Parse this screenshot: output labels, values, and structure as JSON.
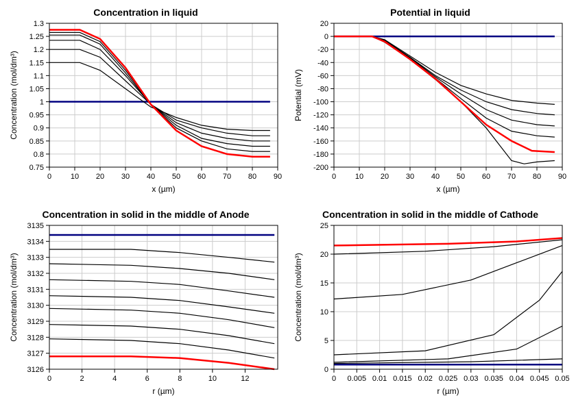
{
  "panels": [
    {
      "key": "tl",
      "title": "Concentration in liquid",
      "xlabel": "x (µm)",
      "ylabel": "Concentration (mol/dm³)",
      "xlim": [
        0,
        90
      ],
      "ylim": [
        0.75,
        1.3
      ],
      "xticks": [
        0,
        10,
        20,
        30,
        40,
        50,
        60,
        70,
        80,
        90
      ],
      "yticks": [
        0.75,
        0.8,
        0.85,
        0.9,
        0.95,
        1,
        1.05,
        1.1,
        1.15,
        1.2,
        1.25,
        1.3
      ],
      "series": [
        {
          "color": "blue",
          "data": [
            [
              0,
              1.0
            ],
            [
              87,
              1.0
            ]
          ]
        },
        {
          "color": "black",
          "data": [
            [
              0,
              1.15
            ],
            [
              12,
              1.15
            ],
            [
              20,
              1.12
            ],
            [
              30,
              1.05
            ],
            [
              40,
              0.98
            ],
            [
              50,
              0.94
            ],
            [
              60,
              0.91
            ],
            [
              70,
              0.895
            ],
            [
              80,
              0.89
            ],
            [
              87,
              0.89
            ]
          ]
        },
        {
          "color": "black",
          "data": [
            [
              0,
              1.2
            ],
            [
              12,
              1.2
            ],
            [
              20,
              1.17
            ],
            [
              30,
              1.08
            ],
            [
              40,
              0.99
            ],
            [
              50,
              0.93
            ],
            [
              60,
              0.9
            ],
            [
              70,
              0.88
            ],
            [
              80,
              0.87
            ],
            [
              87,
              0.87
            ]
          ]
        },
        {
          "color": "black",
          "data": [
            [
              0,
              1.235
            ],
            [
              12,
              1.235
            ],
            [
              20,
              1.2
            ],
            [
              30,
              1.1
            ],
            [
              40,
              0.99
            ],
            [
              50,
              0.92
            ],
            [
              60,
              0.88
            ],
            [
              70,
              0.86
            ],
            [
              80,
              0.85
            ],
            [
              87,
              0.85
            ]
          ]
        },
        {
          "color": "black",
          "data": [
            [
              0,
              1.255
            ],
            [
              12,
              1.255
            ],
            [
              20,
              1.22
            ],
            [
              30,
              1.11
            ],
            [
              40,
              0.99
            ],
            [
              50,
              0.91
            ],
            [
              60,
              0.86
            ],
            [
              70,
              0.84
            ],
            [
              80,
              0.83
            ],
            [
              87,
              0.83
            ]
          ]
        },
        {
          "color": "black",
          "data": [
            [
              0,
              1.265
            ],
            [
              12,
              1.265
            ],
            [
              20,
              1.23
            ],
            [
              30,
              1.12
            ],
            [
              40,
              0.99
            ],
            [
              50,
              0.9
            ],
            [
              60,
              0.85
            ],
            [
              70,
              0.82
            ],
            [
              80,
              0.81
            ],
            [
              87,
              0.81
            ]
          ]
        },
        {
          "color": "red",
          "data": [
            [
              0,
              1.275
            ],
            [
              12,
              1.275
            ],
            [
              20,
              1.24
            ],
            [
              30,
              1.13
            ],
            [
              40,
              0.99
            ],
            [
              50,
              0.89
            ],
            [
              60,
              0.83
            ],
            [
              70,
              0.8
            ],
            [
              80,
              0.79
            ],
            [
              87,
              0.79
            ]
          ]
        }
      ]
    },
    {
      "key": "tr",
      "title": "Potential in liquid",
      "xlabel": "x (µm)",
      "ylabel": "Potential (mV)",
      "xlim": [
        0,
        90
      ],
      "ylim": [
        -200,
        20
      ],
      "xticks": [
        0,
        10,
        20,
        30,
        40,
        50,
        60,
        70,
        80,
        90
      ],
      "yticks": [
        -200,
        -180,
        -160,
        -140,
        -120,
        -100,
        -80,
        -60,
        -40,
        -20,
        0,
        20
      ],
      "series": [
        {
          "color": "blue",
          "data": [
            [
              0,
              0
            ],
            [
              87,
              0
            ]
          ]
        },
        {
          "color": "black",
          "data": [
            [
              0,
              0
            ],
            [
              15,
              0
            ],
            [
              20,
              -5
            ],
            [
              30,
              -30
            ],
            [
              40,
              -55
            ],
            [
              50,
              -75
            ],
            [
              60,
              -88
            ],
            [
              70,
              -98
            ],
            [
              80,
              -102
            ],
            [
              87,
              -104
            ]
          ]
        },
        {
          "color": "black",
          "data": [
            [
              0,
              0
            ],
            [
              15,
              0
            ],
            [
              20,
              -6
            ],
            [
              30,
              -32
            ],
            [
              40,
              -60
            ],
            [
              50,
              -82
            ],
            [
              60,
              -100
            ],
            [
              70,
              -112
            ],
            [
              80,
              -118
            ],
            [
              87,
              -120
            ]
          ]
        },
        {
          "color": "black",
          "data": [
            [
              0,
              0
            ],
            [
              15,
              0
            ],
            [
              20,
              -7
            ],
            [
              30,
              -33
            ],
            [
              40,
              -62
            ],
            [
              50,
              -88
            ],
            [
              60,
              -112
            ],
            [
              70,
              -128
            ],
            [
              80,
              -135
            ],
            [
              87,
              -137
            ]
          ]
        },
        {
          "color": "black",
          "data": [
            [
              0,
              0
            ],
            [
              15,
              0
            ],
            [
              20,
              -8
            ],
            [
              30,
              -34
            ],
            [
              40,
              -64
            ],
            [
              50,
              -95
            ],
            [
              60,
              -125
            ],
            [
              70,
              -145
            ],
            [
              80,
              -152
            ],
            [
              87,
              -154
            ]
          ]
        },
        {
          "color": "black",
          "data": [
            [
              0,
              0
            ],
            [
              15,
              0
            ],
            [
              20,
              -9
            ],
            [
              30,
              -35
            ],
            [
              40,
              -66
            ],
            [
              50,
              -100
            ],
            [
              60,
              -140
            ],
            [
              65,
              -165
            ],
            [
              70,
              -190
            ],
            [
              75,
              -195
            ],
            [
              80,
              -192
            ],
            [
              87,
              -190
            ]
          ]
        },
        {
          "color": "red",
          "data": [
            [
              0,
              0
            ],
            [
              15,
              0
            ],
            [
              20,
              -8
            ],
            [
              30,
              -35
            ],
            [
              40,
              -65
            ],
            [
              50,
              -100
            ],
            [
              60,
              -135
            ],
            [
              70,
              -160
            ],
            [
              78,
              -175
            ],
            [
              87,
              -177
            ]
          ]
        }
      ]
    },
    {
      "key": "bl",
      "title": "Concentration in solid in the middle of Anode",
      "xlabel": "r (µm)",
      "ylabel": "Concentration (mol/dm³)",
      "xlim": [
        0,
        14
      ],
      "ylim": [
        3126,
        3135
      ],
      "xticks": [
        0,
        2,
        4,
        6,
        8,
        10,
        12
      ],
      "yticks": [
        3126,
        3127,
        3128,
        3129,
        3130,
        3131,
        3132,
        3133,
        3134,
        3135
      ],
      "series": [
        {
          "color": "blue",
          "data": [
            [
              0,
              3134.4
            ],
            [
              13.8,
              3134.4
            ]
          ]
        },
        {
          "color": "black",
          "data": [
            [
              0,
              3133.5
            ],
            [
              5,
              3133.5
            ],
            [
              8,
              3133.3
            ],
            [
              11,
              3133.0
            ],
            [
              13.8,
              3132.7
            ]
          ]
        },
        {
          "color": "black",
          "data": [
            [
              0,
              3132.6
            ],
            [
              5,
              3132.5
            ],
            [
              8,
              3132.3
            ],
            [
              11,
              3132.0
            ],
            [
              13.8,
              3131.6
            ]
          ]
        },
        {
          "color": "black",
          "data": [
            [
              0,
              3131.6
            ],
            [
              5,
              3131.5
            ],
            [
              8,
              3131.3
            ],
            [
              11,
              3130.9
            ],
            [
              13.8,
              3130.5
            ]
          ]
        },
        {
          "color": "black",
          "data": [
            [
              0,
              3130.6
            ],
            [
              5,
              3130.5
            ],
            [
              8,
              3130.3
            ],
            [
              11,
              3129.9
            ],
            [
              13.8,
              3129.5
            ]
          ]
        },
        {
          "color": "black",
          "data": [
            [
              0,
              3129.8
            ],
            [
              5,
              3129.7
            ],
            [
              8,
              3129.5
            ],
            [
              11,
              3129.1
            ],
            [
              13.8,
              3128.6
            ]
          ]
        },
        {
          "color": "black",
          "data": [
            [
              0,
              3128.8
            ],
            [
              5,
              3128.7
            ],
            [
              8,
              3128.5
            ],
            [
              11,
              3128.1
            ],
            [
              13.8,
              3127.6
            ]
          ]
        },
        {
          "color": "black",
          "data": [
            [
              0,
              3127.9
            ],
            [
              5,
              3127.8
            ],
            [
              8,
              3127.6
            ],
            [
              11,
              3127.2
            ],
            [
              13.8,
              3126.7
            ]
          ]
        },
        {
          "color": "red",
          "data": [
            [
              0,
              3126.8
            ],
            [
              5,
              3126.8
            ],
            [
              8,
              3126.7
            ],
            [
              11,
              3126.4
            ],
            [
              13.8,
              3126.0
            ]
          ]
        }
      ]
    },
    {
      "key": "br",
      "title": "Concentration in solid in the middle of Cathode",
      "xlabel": "r (µm)",
      "ylabel": "Concentration (mol/dm³)",
      "xlim": [
        0,
        0.05
      ],
      "ylim": [
        0,
        25
      ],
      "xticks": [
        0,
        0.005,
        0.01,
        0.015,
        0.02,
        0.025,
        0.03,
        0.035,
        0.04,
        0.045,
        0.05
      ],
      "yticks": [
        0,
        5,
        10,
        15,
        20,
        25
      ],
      "series": [
        {
          "color": "blue",
          "data": [
            [
              0,
              0.8
            ],
            [
              0.05,
              0.8
            ]
          ]
        },
        {
          "color": "black",
          "data": [
            [
              0,
              1.0
            ],
            [
              0.03,
              1.3
            ],
            [
              0.05,
              1.8
            ]
          ]
        },
        {
          "color": "black",
          "data": [
            [
              0,
              1.2
            ],
            [
              0.025,
              1.8
            ],
            [
              0.04,
              3.5
            ],
            [
              0.05,
              7.5
            ]
          ]
        },
        {
          "color": "black",
          "data": [
            [
              0,
              2.5
            ],
            [
              0.02,
              3.2
            ],
            [
              0.035,
              6.0
            ],
            [
              0.045,
              12.0
            ],
            [
              0.05,
              17.0
            ]
          ]
        },
        {
          "color": "black",
          "data": [
            [
              0,
              12.2
            ],
            [
              0.015,
              13.0
            ],
            [
              0.03,
              15.5
            ],
            [
              0.04,
              18.5
            ],
            [
              0.05,
              21.5
            ]
          ]
        },
        {
          "color": "black",
          "data": [
            [
              0,
              20.0
            ],
            [
              0.02,
              20.5
            ],
            [
              0.035,
              21.3
            ],
            [
              0.05,
              22.5
            ]
          ]
        },
        {
          "color": "red",
          "data": [
            [
              0,
              21.5
            ],
            [
              0.025,
              21.8
            ],
            [
              0.04,
              22.2
            ],
            [
              0.05,
              22.8
            ]
          ]
        }
      ]
    }
  ],
  "style": {
    "background": "#ffffff",
    "grid_color": "#cccccc",
    "frame_color": "#000000",
    "colors": {
      "blue": "#000080",
      "red": "#ff0000",
      "black": "#000000"
    },
    "title_fontsize": 14,
    "label_fontsize": 12,
    "tick_fontsize": 11,
    "line_width_normal": 1.2,
    "line_width_highlight": 2.5
  }
}
